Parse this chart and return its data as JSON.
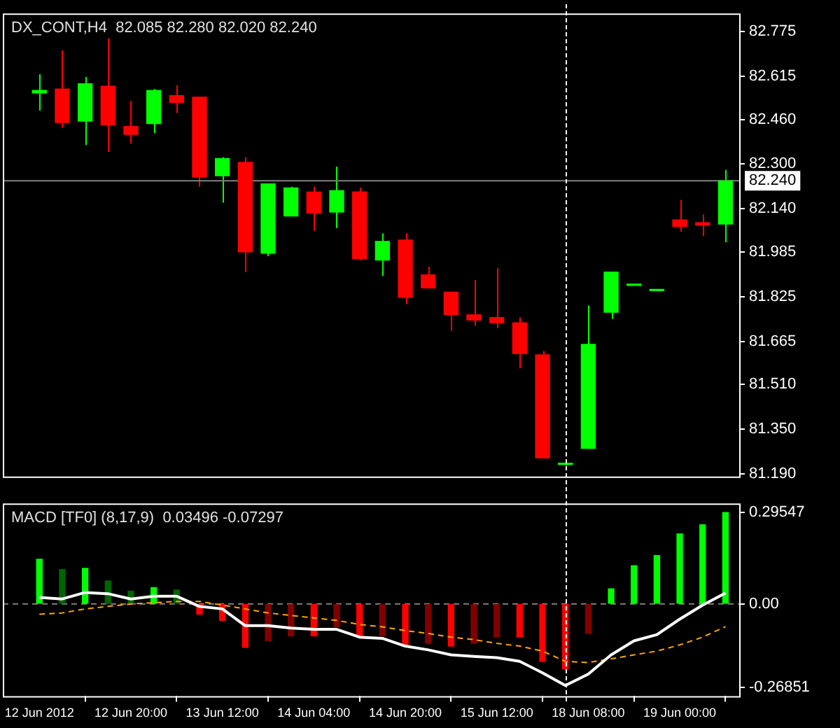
{
  "chart_data": [
    {
      "type": "candlestick",
      "title": "DX_CONT,H4  82.085 82.280 82.020 82.240",
      "categories": [
        null,
        null,
        null,
        null,
        null,
        null,
        null,
        null,
        null,
        null,
        null,
        null,
        null,
        null,
        null,
        null,
        null,
        null,
        null,
        null,
        null,
        null,
        null,
        null,
        null,
        null,
        null,
        null,
        null,
        null,
        null
      ],
      "ohlc": [
        [
          82.555,
          82.622,
          82.492,
          82.564
        ],
        [
          82.569,
          82.708,
          82.43,
          82.449
        ],
        [
          82.454,
          82.612,
          82.368,
          82.588
        ],
        [
          82.579,
          82.751,
          82.344,
          82.44
        ],
        [
          82.435,
          82.526,
          82.373,
          82.406
        ],
        [
          82.445,
          82.569,
          82.411,
          82.564
        ],
        [
          82.545,
          82.583,
          82.483,
          82.521
        ],
        [
          82.54,
          82.54,
          82.219,
          82.253
        ],
        [
          82.258,
          82.325,
          82.162,
          82.32
        ],
        [
          82.306,
          82.325,
          81.913,
          81.985
        ],
        [
          81.98,
          82.229,
          81.97,
          82.229
        ],
        [
          82.114,
          82.219,
          82.114,
          82.215
        ],
        [
          82.2,
          82.219,
          82.061,
          82.124
        ],
        [
          82.128,
          82.291,
          82.071,
          82.205
        ],
        [
          82.2,
          82.215,
          81.956,
          81.961
        ],
        [
          81.956,
          82.052,
          81.899,
          82.023
        ],
        [
          82.028,
          82.052,
          81.798,
          81.822
        ],
        [
          81.903,
          81.932,
          81.856,
          81.856
        ],
        [
          81.841,
          81.841,
          81.702,
          81.76
        ],
        [
          81.76,
          81.884,
          81.721,
          81.741
        ],
        [
          81.75,
          81.927,
          81.712,
          81.731
        ],
        [
          81.731,
          81.75,
          81.568,
          81.621
        ],
        [
          81.616,
          81.63,
          81.247,
          81.247
        ],
        [
          81.223,
          81.228,
          81.219,
          81.228
        ],
        [
          81.281,
          81.793,
          81.281,
          81.654
        ],
        [
          81.769,
          81.913,
          81.745,
          81.913
        ],
        [
          81.865,
          81.865,
          81.865,
          81.865
        ],
        [
          81.846,
          81.846,
          81.846,
          81.846
        ],
        [
          82.1,
          82.172,
          82.057,
          82.076
        ],
        [
          82.09,
          82.119,
          82.042,
          82.081
        ],
        [
          82.085,
          82.28,
          82.02,
          82.24
        ]
      ],
      "colors": [
        "#00ff00",
        "#ff0000",
        "#00ff00",
        "#ff0000",
        "#ff0000",
        "#00ff00",
        "#ff0000",
        "#ff0000",
        "#00ff00",
        "#ff0000",
        "#00ff00",
        "#00ff00",
        "#ff0000",
        "#00ff00",
        "#ff0000",
        "#00ff00",
        "#ff0000",
        "#ff0000",
        "#ff0000",
        "#ff0000",
        "#ff0000",
        "#ff0000",
        "#ff0000",
        "#00ff00",
        "#00ff00",
        "#00ff00",
        "#00ff00",
        "#00ff00",
        "#ff0000",
        "#ff0000",
        "#00ff00"
      ],
      "ylim": [
        81.18,
        82.84
      ],
      "yticks": [
        82.775,
        82.615,
        {
          "value": 82.46,
          "label": "82.460"
        },
        {
          "value": 82.3,
          "label": "82.300"
        },
        {
          "value": 82.14,
          "label": "82.140"
        },
        81.985,
        81.825,
        81.665,
        {
          "value": 81.51,
          "label": "81.510"
        },
        {
          "value": 81.35,
          "label": "81.350"
        },
        {
          "value": 81.19,
          "label": "81.190"
        }
      ],
      "tick_labels": "y",
      "ref_lines": [
        {
          "axis": "y",
          "value": 82.24,
          "label": "82.240",
          "color": "#808080",
          "line_style": "solid"
        }
      ]
    },
    {
      "type": "bar",
      "title": "MACD [TF0] (8,17,9)  0.03496 -0.07297",
      "categories": [
        "12 Jun 2012",
        null,
        null,
        null,
        "12 Jun 20:00",
        null,
        null,
        null,
        "13 Jun 12:00",
        null,
        null,
        null,
        "14 Jun 04:00",
        null,
        null,
        null,
        "14 Jun 20:00",
        null,
        null,
        null,
        "15 Jun 12:00",
        null,
        null,
        null,
        "18 Jun 08:00",
        null,
        null,
        null,
        "19 Jun 00:00",
        null,
        null
      ],
      "series": [
        {
          "type": "bar",
          "colors": [
            "#00ff00",
            "#006400",
            "#00ff00",
            "#006400",
            "#006400",
            "#00ff00",
            "#006400",
            "#ff0000",
            "#ff0000",
            "#ff0000",
            "#800000",
            "#800000",
            "#ff0000",
            "#800000",
            "#ff0000",
            "#800000",
            "#ff0000",
            "#800000",
            "#ff0000",
            "#800000",
            "#800000",
            "#ff0000",
            "#ff0000",
            "#ff0000",
            "#800000",
            "#00ff00",
            "#00ff00",
            "#00ff00",
            "#00ff00",
            "#00ff00",
            "#00ff00"
          ],
          "values": [
            0.144,
            0.111,
            0.115,
            0.074,
            0.041,
            0.053,
            0.045,
            -0.033,
            -0.053,
            -0.14,
            -0.119,
            -0.103,
            -0.103,
            -0.074,
            -0.107,
            -0.103,
            -0.136,
            -0.127,
            -0.136,
            -0.127,
            -0.107,
            -0.107,
            -0.185,
            -0.21,
            -0.095,
            0.049,
            0.123,
            0.156,
            0.226,
            0.255,
            0.295
          ]
        },
        {
          "type": "line",
          "color": "#ffffff",
          "line_style": "solid",
          "values": [
            0.021,
            0.016,
            0.037,
            0.033,
            0.016,
            0.025,
            0.025,
            -0.008,
            -0.016,
            -0.07,
            -0.07,
            -0.078,
            -0.082,
            -0.082,
            -0.107,
            -0.111,
            -0.136,
            -0.148,
            -0.164,
            -0.169,
            -0.173,
            -0.185,
            -0.222,
            -0.263,
            -0.226,
            -0.164,
            -0.119,
            -0.099,
            -0.049,
            -0.004,
            0.035
          ]
        },
        {
          "type": "line",
          "color": "#ffa500",
          "line_style": "dashed",
          "values": [
            -0.033,
            -0.029,
            -0.016,
            -0.008,
            0,
            0.004,
            0.008,
            0.008,
            -0.004,
            -0.016,
            -0.029,
            -0.037,
            -0.045,
            -0.053,
            -0.066,
            -0.074,
            -0.086,
            -0.095,
            -0.107,
            -0.115,
            -0.127,
            -0.136,
            -0.152,
            -0.185,
            -0.189,
            -0.177,
            -0.164,
            -0.152,
            -0.132,
            -0.107,
            -0.073
          ]
        }
      ],
      "ylim": [
        -0.297,
        0.324
      ],
      "yticks": [
        0.29547,
        {
          "value": 0,
          "label": "0.00"
        },
        -0.26851
      ],
      "marker": "none",
      "ref_lines": [
        {
          "axis": "y",
          "value": 0,
          "color": "#808080",
          "line_style": "dashed"
        }
      ]
    }
  ]
}
